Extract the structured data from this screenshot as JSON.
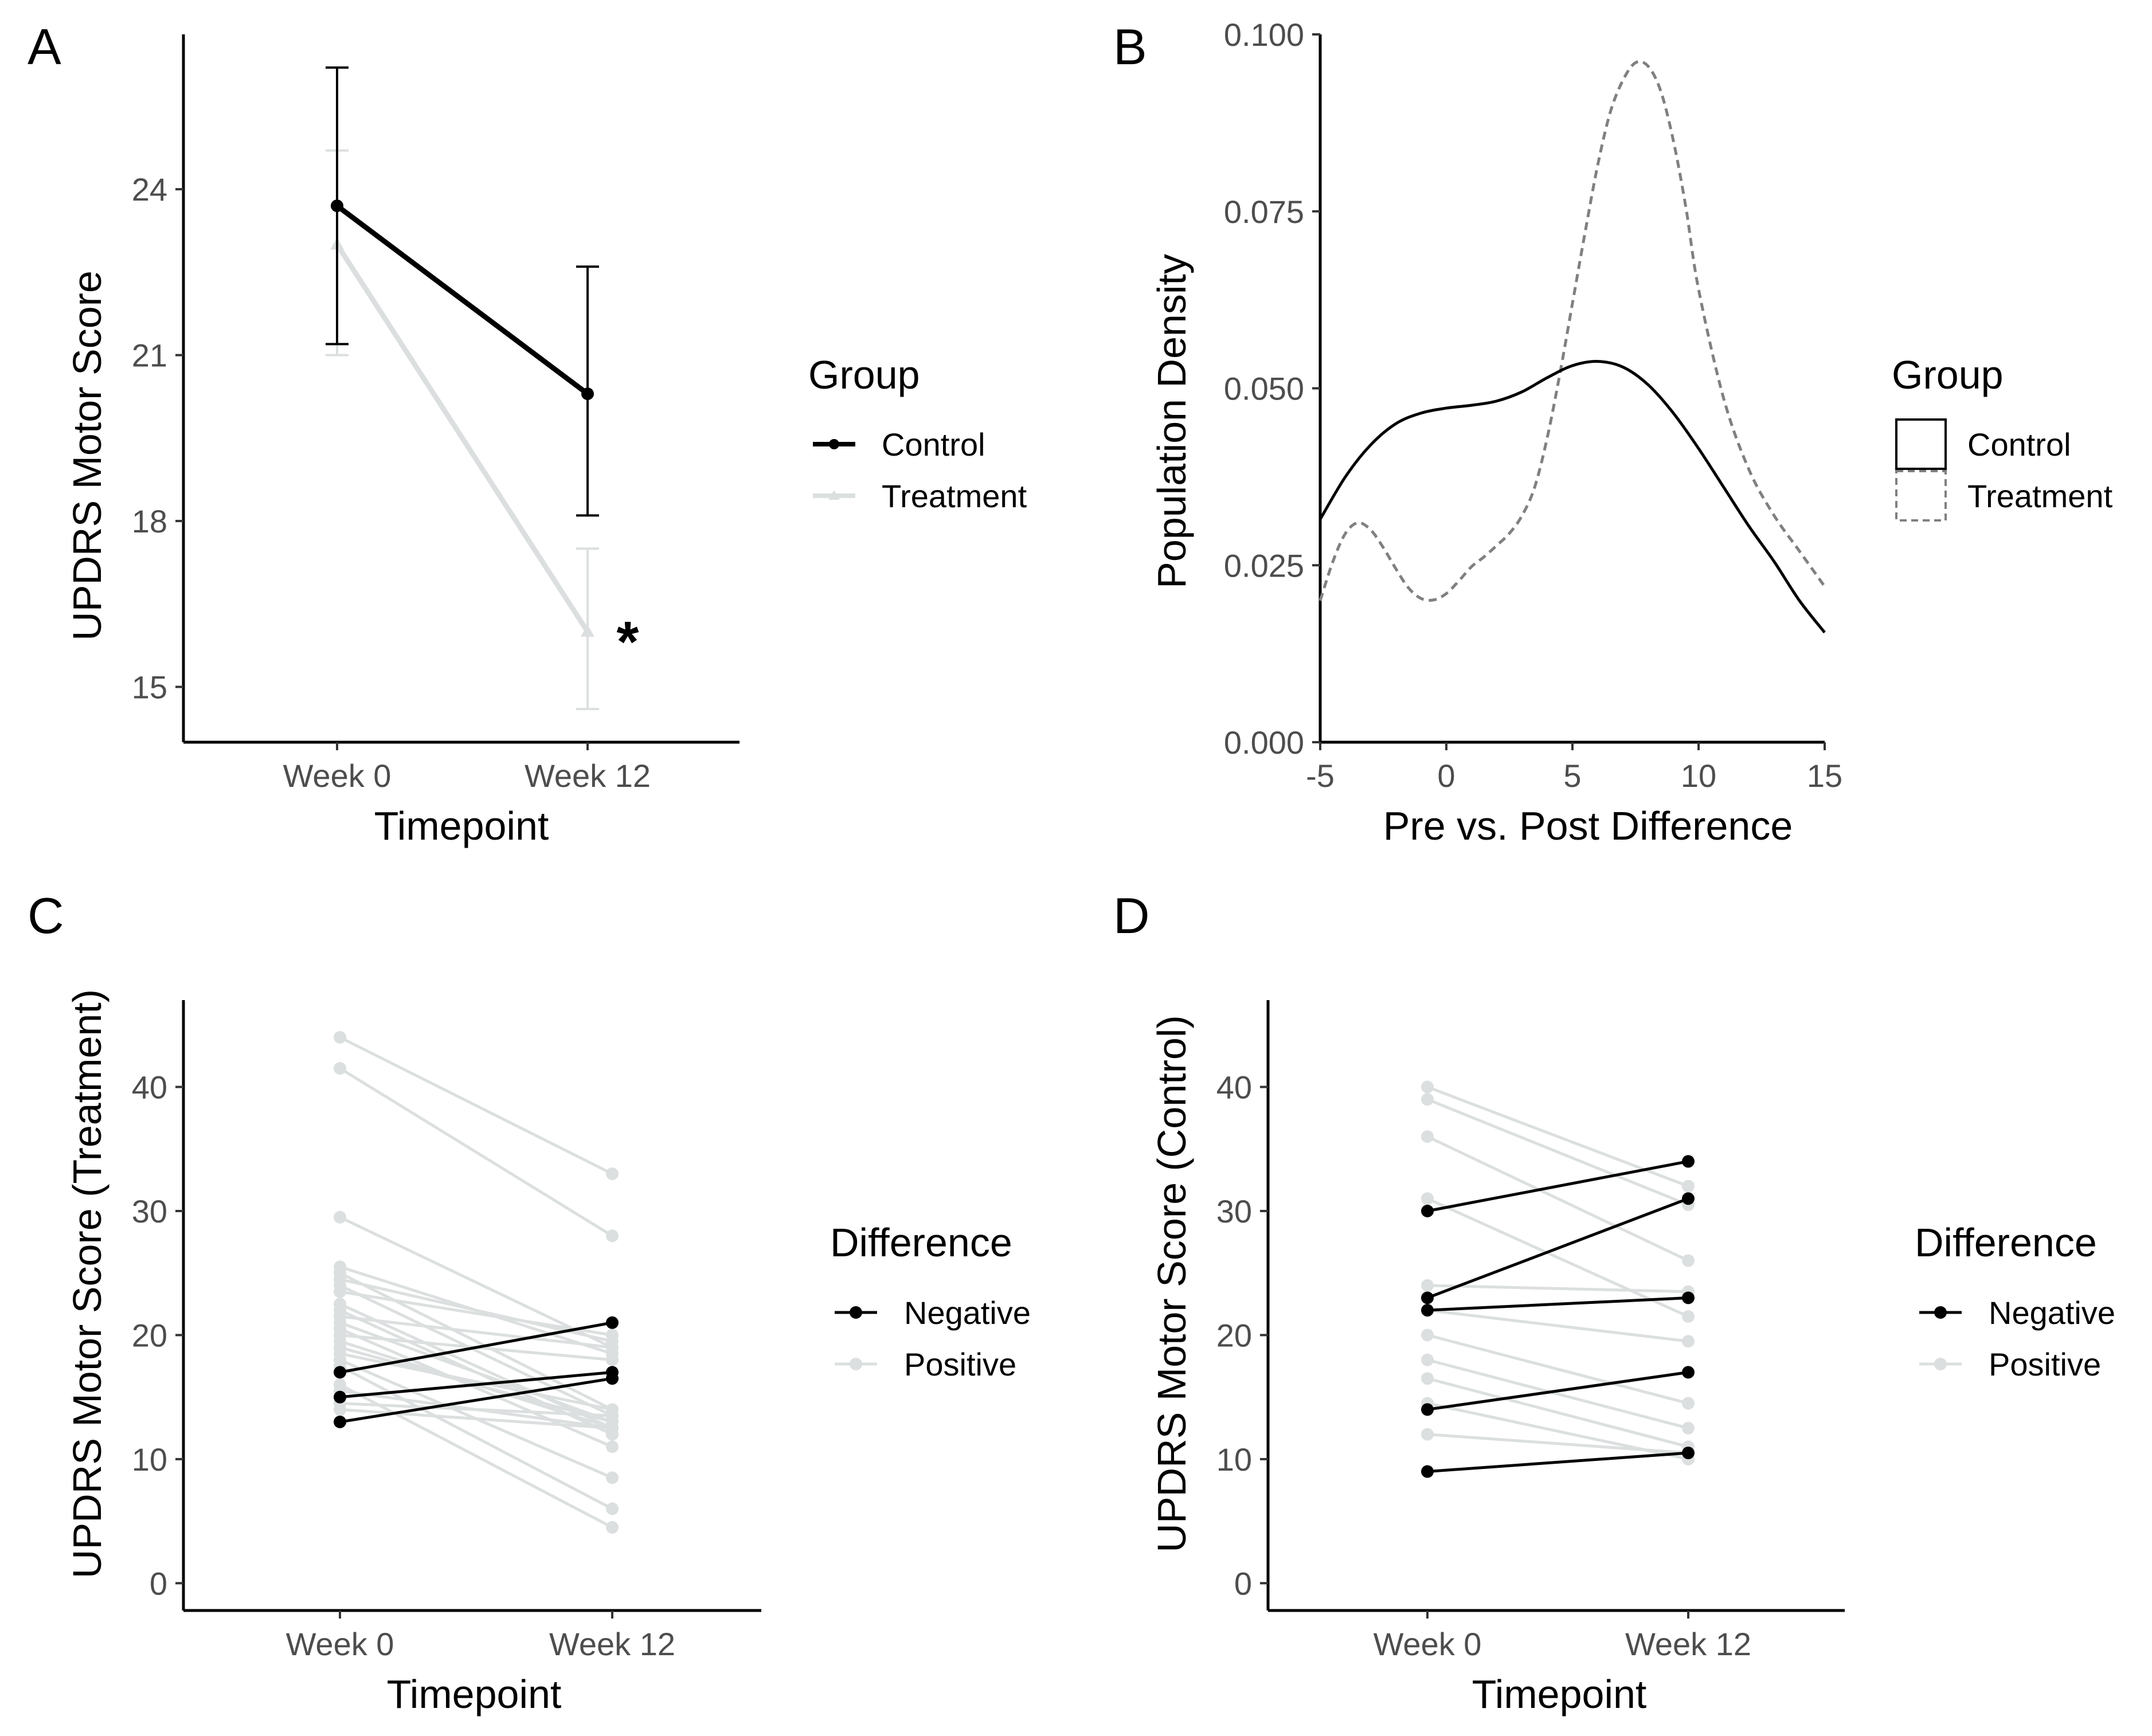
{
  "colors": {
    "control": "#000000",
    "treatment": "#dcdfdf",
    "negative": "#000000",
    "positive": "#dcdfdf",
    "treatment_density": "#808080"
  },
  "chart_data": [
    {
      "panel": "A",
      "type": "line",
      "title": "",
      "xlabel": "Timepoint",
      "ylabel": "UPDRS Motor Score",
      "categories": [
        "Week 0",
        "Week 12"
      ],
      "ylim": [
        14.0,
        26.8
      ],
      "yticks": [
        15,
        18,
        21,
        24
      ],
      "legend": {
        "title": "Group",
        "position": "right",
        "entries": [
          "Control",
          "Treatment"
        ]
      },
      "series": [
        {
          "name": "Control",
          "values": [
            23.7,
            20.3
          ],
          "error_low": [
            21.2,
            18.1
          ],
          "error_high": [
            26.2,
            22.6
          ]
        },
        {
          "name": "Treatment",
          "values": [
            23.0,
            16.0
          ],
          "error_low": [
            21.0,
            14.6
          ],
          "error_high": [
            24.7,
            17.5
          ]
        }
      ],
      "annotation": {
        "text": "*",
        "category": "Week 12",
        "y": 16.0
      }
    },
    {
      "panel": "B",
      "type": "line",
      "title": "",
      "xlabel": "Pre vs. Post Difference",
      "ylabel": "Population Density",
      "xlim": [
        -5,
        15
      ],
      "ylim": [
        0.0,
        0.1
      ],
      "xticks": [
        "-5",
        "0",
        "5",
        "10",
        "15"
      ],
      "yticks": [
        "0.000",
        "0.025",
        "0.050",
        "0.075",
        "0.100"
      ],
      "legend": {
        "title": "Group",
        "position": "right",
        "entries": [
          "Control",
          "Treatment"
        ]
      },
      "series": [
        {
          "name": "Control",
          "x": [
            -5,
            -4,
            -3,
            -2,
            -1,
            0,
            1,
            2,
            3,
            4,
            5,
            6,
            7,
            8,
            9,
            10,
            11,
            12,
            13,
            14,
            15
          ],
          "y": [
            0.0315,
            0.0375,
            0.042,
            0.045,
            0.0465,
            0.0472,
            0.0476,
            0.0482,
            0.0495,
            0.0515,
            0.0532,
            0.0538,
            0.053,
            0.0505,
            0.0465,
            0.0415,
            0.036,
            0.0305,
            0.0255,
            0.02,
            0.0155
          ]
        },
        {
          "name": "Treatment",
          "x": [
            -5,
            -4.5,
            -4,
            -3.5,
            -3,
            -2.5,
            -2,
            -1.5,
            -1,
            -0.5,
            0,
            0.5,
            1,
            1.5,
            2,
            2.5,
            3,
            3.5,
            4,
            4.5,
            5,
            5.5,
            6,
            6.5,
            7,
            7.5,
            8,
            8.5,
            9,
            9.5,
            10,
            11,
            12,
            13,
            14,
            15
          ],
          "y": [
            0.02,
            0.0255,
            0.0295,
            0.031,
            0.03,
            0.0275,
            0.0245,
            0.0218,
            0.0203,
            0.0201,
            0.021,
            0.0228,
            0.0248,
            0.0262,
            0.0278,
            0.0295,
            0.032,
            0.036,
            0.043,
            0.052,
            0.062,
            0.072,
            0.0815,
            0.089,
            0.0935,
            0.096,
            0.0955,
            0.092,
            0.085,
            0.0755,
            0.064,
            0.0485,
            0.0385,
            0.032,
            0.027,
            0.022
          ]
        }
      ]
    },
    {
      "panel": "C",
      "type": "line",
      "title": "",
      "xlabel": "Timepoint",
      "ylabel": "UPDRS Motor Score (Treatment)",
      "categories": [
        "Week 0",
        "Week 12"
      ],
      "ylim": [
        -2.2,
        47
      ],
      "yticks": [
        0,
        10,
        20,
        30,
        40
      ],
      "legend": {
        "title": "Difference",
        "position": "right",
        "entries": [
          "Negative",
          "Positive"
        ]
      },
      "series": [
        {
          "name": "Positive",
          "pairs": [
            [
              44,
              33
            ],
            [
              41.5,
              28
            ],
            [
              29.5,
              19
            ],
            [
              25.5,
              18.5
            ],
            [
              25,
              14
            ],
            [
              24.5,
              19.5
            ],
            [
              24,
              13.5
            ],
            [
              23.5,
              20
            ],
            [
              22.5,
              12.5
            ],
            [
              22,
              12
            ],
            [
              21.5,
              19
            ],
            [
              21,
              13
            ],
            [
              20.5,
              11
            ],
            [
              20,
              18
            ],
            [
              19.5,
              12.5
            ],
            [
              19,
              13
            ],
            [
              18.5,
              14
            ],
            [
              18,
              8.5
            ],
            [
              17.5,
              6
            ],
            [
              16,
              4.5
            ],
            [
              15.5,
              12.5
            ],
            [
              14.5,
              13.5
            ],
            [
              14,
              12.5
            ]
          ]
        },
        {
          "name": "Negative",
          "pairs": [
            [
              17,
              21
            ],
            [
              15,
              17
            ],
            [
              13,
              16.5
            ]
          ]
        }
      ]
    },
    {
      "panel": "D",
      "type": "line",
      "title": "",
      "xlabel": "Timepoint",
      "ylabel": "UPDRS Motor Score (Control)",
      "categories": [
        "Week 0",
        "Week 12"
      ],
      "ylim": [
        -2.2,
        47
      ],
      "yticks": [
        0,
        10,
        20,
        30,
        40
      ],
      "legend": {
        "title": "Difference",
        "position": "right",
        "entries": [
          "Negative",
          "Positive"
        ]
      },
      "series": [
        {
          "name": "Positive",
          "pairs": [
            [
              40,
              32
            ],
            [
              39,
              30.5
            ],
            [
              36,
              26
            ],
            [
              31,
              21.5
            ],
            [
              24,
              23.5
            ],
            [
              22,
              19.5
            ],
            [
              20,
              14.5
            ],
            [
              18,
              12.5
            ],
            [
              16.5,
              11
            ],
            [
              14.5,
              10
            ],
            [
              12,
              10.5
            ]
          ]
        },
        {
          "name": "Negative",
          "pairs": [
            [
              30,
              34
            ],
            [
              23,
              31
            ],
            [
              22,
              23
            ],
            [
              14,
              17
            ],
            [
              9,
              10.5
            ]
          ]
        }
      ]
    }
  ]
}
